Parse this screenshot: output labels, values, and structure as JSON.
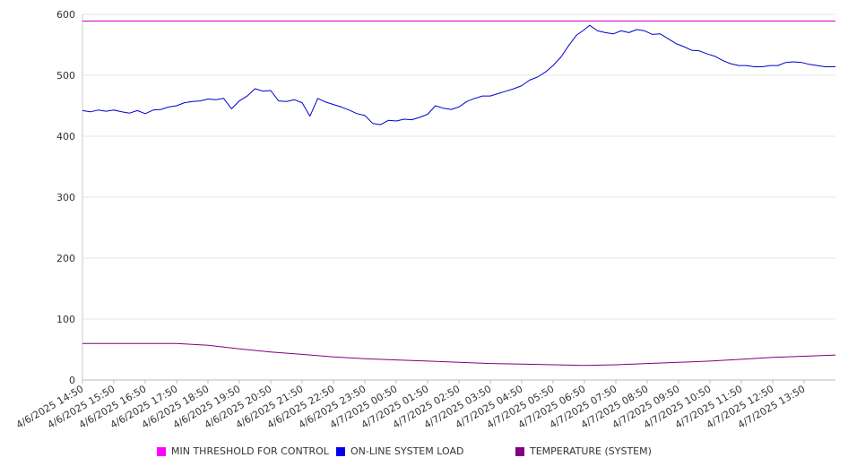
{
  "chart_data": {
    "type": "line",
    "title": "",
    "xlabel": "",
    "ylabel": "",
    "ylim": [
      0,
      600
    ],
    "yticks": [
      0,
      100,
      200,
      300,
      400,
      500,
      600
    ],
    "grid": "horizontal",
    "legend_position": "bottom",
    "x_tick_labels": [
      "4/6/2025 14:50",
      "4/6/2025 15:50",
      "4/6/2025 16:50",
      "4/6/2025 17:50",
      "4/6/2025 18:50",
      "4/6/2025 19:50",
      "4/6/2025 20:50",
      "4/6/2025 21:50",
      "4/6/2025 22:50",
      "4/6/2025 23:50",
      "4/7/2025 00:50",
      "4/7/2025 01:50",
      "4/7/2025 02:50",
      "4/7/2025 03:50",
      "4/7/2025 04:50",
      "4/7/2025 05:50",
      "4/7/2025 06:50",
      "4/7/2025 07:50",
      "4/7/2025 08:50",
      "4/7/2025 09:50",
      "4/7/2025 10:50",
      "4/7/2025 11:50",
      "4/7/2025 12:50",
      "4/7/2025 13:50"
    ],
    "x_start": "4/6/2025 14:50",
    "x_end": "4/7/2025 14:50",
    "series": [
      {
        "name": "MIN THRESHOLD FOR CONTROL",
        "color": "#cc00cc",
        "legend_color": "#ff00ff",
        "points": [
          [
            "4/6/2025 14:50",
            589
          ],
          [
            "4/7/2025 14:50",
            589
          ]
        ]
      },
      {
        "name": "ON-LINE SYSTEM LOAD",
        "color": "#0000cc",
        "legend_color": "#0000ee",
        "points": [
          [
            "4/6/2025 14:50",
            442
          ],
          [
            "4/6/2025 15:05",
            440
          ],
          [
            "4/6/2025 15:20",
            443
          ],
          [
            "4/6/2025 15:35",
            441
          ],
          [
            "4/6/2025 15:50",
            443
          ],
          [
            "4/6/2025 16:05",
            440
          ],
          [
            "4/6/2025 16:20",
            438
          ],
          [
            "4/6/2025 16:35",
            442
          ],
          [
            "4/6/2025 16:50",
            437
          ],
          [
            "4/6/2025 17:05",
            443
          ],
          [
            "4/6/2025 17:20",
            444
          ],
          [
            "4/6/2025 17:35",
            448
          ],
          [
            "4/6/2025 17:50",
            450
          ],
          [
            "4/6/2025 18:05",
            455
          ],
          [
            "4/6/2025 18:20",
            457
          ],
          [
            "4/6/2025 18:35",
            458
          ],
          [
            "4/6/2025 18:50",
            461
          ],
          [
            "4/6/2025 19:05",
            460
          ],
          [
            "4/6/2025 19:20",
            462
          ],
          [
            "4/6/2025 19:35",
            445
          ],
          [
            "4/6/2025 19:50",
            458
          ],
          [
            "4/6/2025 20:05",
            466
          ],
          [
            "4/6/2025 20:20",
            478
          ],
          [
            "4/6/2025 20:35",
            474
          ],
          [
            "4/6/2025 20:50",
            475
          ],
          [
            "4/6/2025 21:05",
            458
          ],
          [
            "4/6/2025 21:20",
            457
          ],
          [
            "4/6/2025 21:35",
            460
          ],
          [
            "4/6/2025 21:50",
            455
          ],
          [
            "4/6/2025 22:05",
            433
          ],
          [
            "4/6/2025 22:20",
            462
          ],
          [
            "4/6/2025 22:35",
            456
          ],
          [
            "4/6/2025 22:50",
            452
          ],
          [
            "4/6/2025 23:05",
            448
          ],
          [
            "4/6/2025 23:20",
            443
          ],
          [
            "4/6/2025 23:35",
            437
          ],
          [
            "4/6/2025 23:50",
            434
          ],
          [
            "4/7/2025 00:05",
            421
          ],
          [
            "4/7/2025 00:20",
            419
          ],
          [
            "4/7/2025 00:35",
            426
          ],
          [
            "4/7/2025 00:50",
            425
          ],
          [
            "4/7/2025 01:05",
            428
          ],
          [
            "4/7/2025 01:20",
            427
          ],
          [
            "4/7/2025 01:35",
            431
          ],
          [
            "4/7/2025 01:50",
            436
          ],
          [
            "4/7/2025 02:05",
            450
          ],
          [
            "4/7/2025 02:20",
            446
          ],
          [
            "4/7/2025 02:35",
            444
          ],
          [
            "4/7/2025 02:50",
            448
          ],
          [
            "4/7/2025 03:05",
            457
          ],
          [
            "4/7/2025 03:20",
            462
          ],
          [
            "4/7/2025 03:35",
            466
          ],
          [
            "4/7/2025 03:50",
            466
          ],
          [
            "4/7/2025 04:05",
            470
          ],
          [
            "4/7/2025 04:20",
            474
          ],
          [
            "4/7/2025 04:35",
            478
          ],
          [
            "4/7/2025 04:50",
            483
          ],
          [
            "4/7/2025 05:05",
            492
          ],
          [
            "4/7/2025 05:20",
            497
          ],
          [
            "4/7/2025 05:35",
            505
          ],
          [
            "4/7/2025 05:50",
            516
          ],
          [
            "4/7/2025 06:05",
            530
          ],
          [
            "4/7/2025 06:20",
            549
          ],
          [
            "4/7/2025 06:35",
            566
          ],
          [
            "4/7/2025 06:50",
            575
          ],
          [
            "4/7/2025 07:00",
            582
          ],
          [
            "4/7/2025 07:15",
            573
          ],
          [
            "4/7/2025 07:30",
            570
          ],
          [
            "4/7/2025 07:45",
            568
          ],
          [
            "4/7/2025 08:00",
            573
          ],
          [
            "4/7/2025 08:15",
            570
          ],
          [
            "4/7/2025 08:30",
            575
          ],
          [
            "4/7/2025 08:45",
            573
          ],
          [
            "4/7/2025 09:00",
            567
          ],
          [
            "4/7/2025 09:15",
            568
          ],
          [
            "4/7/2025 09:30",
            560
          ],
          [
            "4/7/2025 09:45",
            552
          ],
          [
            "4/7/2025 10:00",
            547
          ],
          [
            "4/7/2025 10:15",
            541
          ],
          [
            "4/7/2025 10:30",
            540
          ],
          [
            "4/7/2025 10:45",
            535
          ],
          [
            "4/7/2025 11:00",
            531
          ],
          [
            "4/7/2025 11:15",
            524
          ],
          [
            "4/7/2025 11:30",
            519
          ],
          [
            "4/7/2025 11:45",
            516
          ],
          [
            "4/7/2025 12:00",
            516
          ],
          [
            "4/7/2025 12:15",
            514
          ],
          [
            "4/7/2025 12:30",
            514
          ],
          [
            "4/7/2025 12:45",
            516
          ],
          [
            "4/7/2025 13:00",
            516
          ],
          [
            "4/7/2025 13:15",
            521
          ],
          [
            "4/7/2025 13:30",
            522
          ],
          [
            "4/7/2025 13:45",
            521
          ],
          [
            "4/7/2025 14:00",
            518
          ],
          [
            "4/7/2025 14:15",
            516
          ],
          [
            "4/7/2025 14:30",
            514
          ],
          [
            "4/7/2025 14:50",
            514
          ]
        ]
      },
      {
        "name": "TEMPERATURE (SYSTEM)",
        "color": "#800080",
        "legend_color": "#800080",
        "points": [
          [
            "4/6/2025 14:50",
            60
          ],
          [
            "4/6/2025 17:50",
            60
          ],
          [
            "4/6/2025 18:50",
            57
          ],
          [
            "4/6/2025 19:50",
            51
          ],
          [
            "4/6/2025 20:50",
            46
          ],
          [
            "4/6/2025 21:50",
            42
          ],
          [
            "4/6/2025 22:50",
            38
          ],
          [
            "4/6/2025 23:50",
            35
          ],
          [
            "4/7/2025 00:50",
            33
          ],
          [
            "4/7/2025 01:50",
            31
          ],
          [
            "4/7/2025 02:50",
            29
          ],
          [
            "4/7/2025 03:50",
            27
          ],
          [
            "4/7/2025 04:50",
            26
          ],
          [
            "4/7/2025 05:50",
            25
          ],
          [
            "4/7/2025 06:50",
            24
          ],
          [
            "4/7/2025 07:50",
            25
          ],
          [
            "4/7/2025 08:50",
            27
          ],
          [
            "4/7/2025 09:50",
            29
          ],
          [
            "4/7/2025 10:50",
            31
          ],
          [
            "4/7/2025 11:50",
            34
          ],
          [
            "4/7/2025 12:50",
            37
          ],
          [
            "4/7/2025 13:50",
            39
          ],
          [
            "4/7/2025 14:50",
            41
          ]
        ]
      }
    ]
  }
}
